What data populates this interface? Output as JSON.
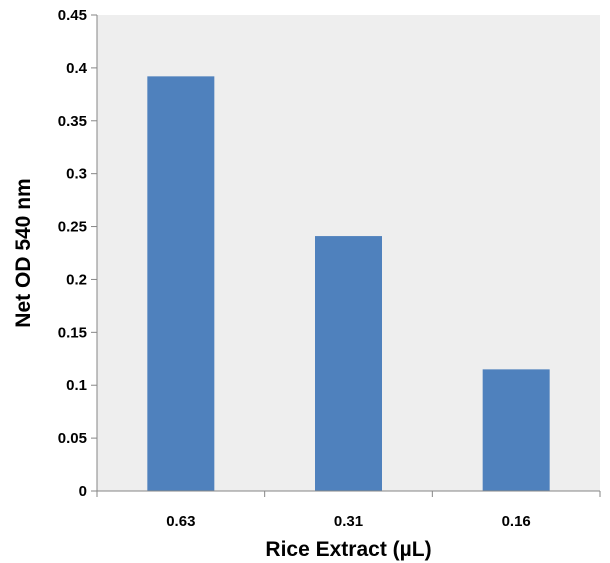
{
  "chart_data": {
    "type": "bar",
    "title": "",
    "xlabel": "Rice Extract (µL)",
    "ylabel": "Net OD 540 nm",
    "categories": [
      "0.63",
      "0.31",
      "0.16"
    ],
    "values": [
      0.392,
      0.241,
      0.115
    ],
    "ylim": [
      0,
      0.45
    ],
    "yticks": [
      "0",
      "0.05",
      "0.1",
      "0.15",
      "0.2",
      "0.25",
      "0.3",
      "0.35",
      "0.4",
      "0.45"
    ],
    "grid": false,
    "legend": "none",
    "colors": {
      "bar": "#4f81bd",
      "plot_background": "#eeeeee",
      "axis": "#868686"
    }
  }
}
